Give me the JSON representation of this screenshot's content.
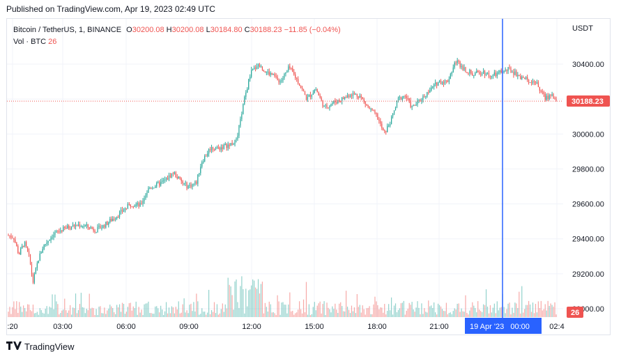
{
  "header": {
    "published": "Published on TradingView.com, Apr 19, 2023 02:49 UTC"
  },
  "legend": {
    "symbol": "Bitcoin / TetherUS, 1, BINANCE",
    "o_label": "O",
    "o": "30200.08",
    "h_label": "H",
    "h": "30200.08",
    "l_label": "L",
    "l": "30184.80",
    "c_label": "C",
    "c": "30188.23",
    "change": "−11.85 (−0.04%)",
    "vol_label": "Vol · BTC",
    "vol": "26"
  },
  "axis": {
    "currency": "USDT"
  },
  "price_tag": "30188.23",
  "vol_tag": "26",
  "crosshair_label": "19 Apr '23   00:00",
  "footer": {
    "brand": "TradingView"
  },
  "colors": {
    "up": "#26a69a",
    "down": "#ef5350",
    "crosshair": "#2962ff",
    "grid": "#f0f3fa"
  },
  "chart_data": {
    "type": "candlestick",
    "title": "Bitcoin / TetherUS, 1, BINANCE",
    "x_ticks": [
      ":20",
      "03:00",
      "06:00",
      "09:00",
      "12:00",
      "15:00",
      "18:00",
      "21:00",
      "02:4"
    ],
    "y_ticks": [
      29000,
      29200,
      29400,
      29600,
      29800,
      30000,
      30400
    ],
    "y_tick_labels": [
      "29000.00",
      "29200.00",
      "29400.00",
      "29600.00",
      "29800.00",
      "30000.00",
      "30400.00"
    ],
    "ylim": [
      28980,
      30580
    ],
    "last_price": 30188.23,
    "price_path": [
      [
        0,
        29420
      ],
      [
        0.3,
        29410
      ],
      [
        0.6,
        29310
      ],
      [
        0.9,
        29380
      ],
      [
        1.2,
        29290
      ],
      [
        1.4,
        29150
      ],
      [
        1.7,
        29280
      ],
      [
        2.0,
        29360
      ],
      [
        2.5,
        29420
      ],
      [
        3.0,
        29450
      ],
      [
        3.5,
        29470
      ],
      [
        4.0,
        29480
      ],
      [
        4.5,
        29470
      ],
      [
        5.0,
        29450
      ],
      [
        5.5,
        29480
      ],
      [
        6.0,
        29520
      ],
      [
        6.5,
        29560
      ],
      [
        7.0,
        29600
      ],
      [
        7.5,
        29590
      ],
      [
        8.0,
        29690
      ],
      [
        8.5,
        29710
      ],
      [
        9.0,
        29740
      ],
      [
        9.4,
        29780
      ],
      [
        9.9,
        29720
      ],
      [
        10.2,
        29700
      ],
      [
        10.7,
        29720
      ],
      [
        11.0,
        29840
      ],
      [
        11.5,
        29920
      ],
      [
        12.0,
        29920
      ],
      [
        12.6,
        29940
      ],
      [
        13.0,
        29960
      ],
      [
        13.4,
        30180
      ],
      [
        13.8,
        30350
      ],
      [
        14.2,
        30400
      ],
      [
        14.6,
        30360
      ],
      [
        15.0,
        30340
      ],
      [
        15.5,
        30300
      ],
      [
        16.0,
        30380
      ],
      [
        16.5,
        30300
      ],
      [
        17.0,
        30200
      ],
      [
        17.5,
        30260
      ],
      [
        18.0,
        30150
      ],
      [
        18.5,
        30180
      ],
      [
        19.0,
        30200
      ],
      [
        19.5,
        30230
      ],
      [
        20.0,
        30220
      ],
      [
        20.5,
        30150
      ],
      [
        21.0,
        30100
      ],
      [
        21.4,
        30000
      ],
      [
        21.8,
        30080
      ],
      [
        22.2,
        30200
      ],
      [
        22.6,
        30220
      ],
      [
        23.0,
        30150
      ],
      [
        23.5,
        30200
      ],
      [
        24.0,
        30250
      ],
      [
        24.5,
        30300
      ],
      [
        25.0,
        30300
      ],
      [
        25.5,
        30420
      ],
      [
        26.0,
        30370
      ],
      [
        26.5,
        30340
      ],
      [
        27.0,
        30360
      ],
      [
        27.5,
        30330
      ],
      [
        28.0,
        30350
      ],
      [
        28.5,
        30370
      ],
      [
        29.0,
        30340
      ],
      [
        29.5,
        30310
      ],
      [
        30.0,
        30300
      ],
      [
        30.3,
        30250
      ],
      [
        30.6,
        30200
      ],
      [
        30.9,
        30230
      ],
      [
        31.2,
        30190
      ]
    ],
    "volume_max": 190
  }
}
